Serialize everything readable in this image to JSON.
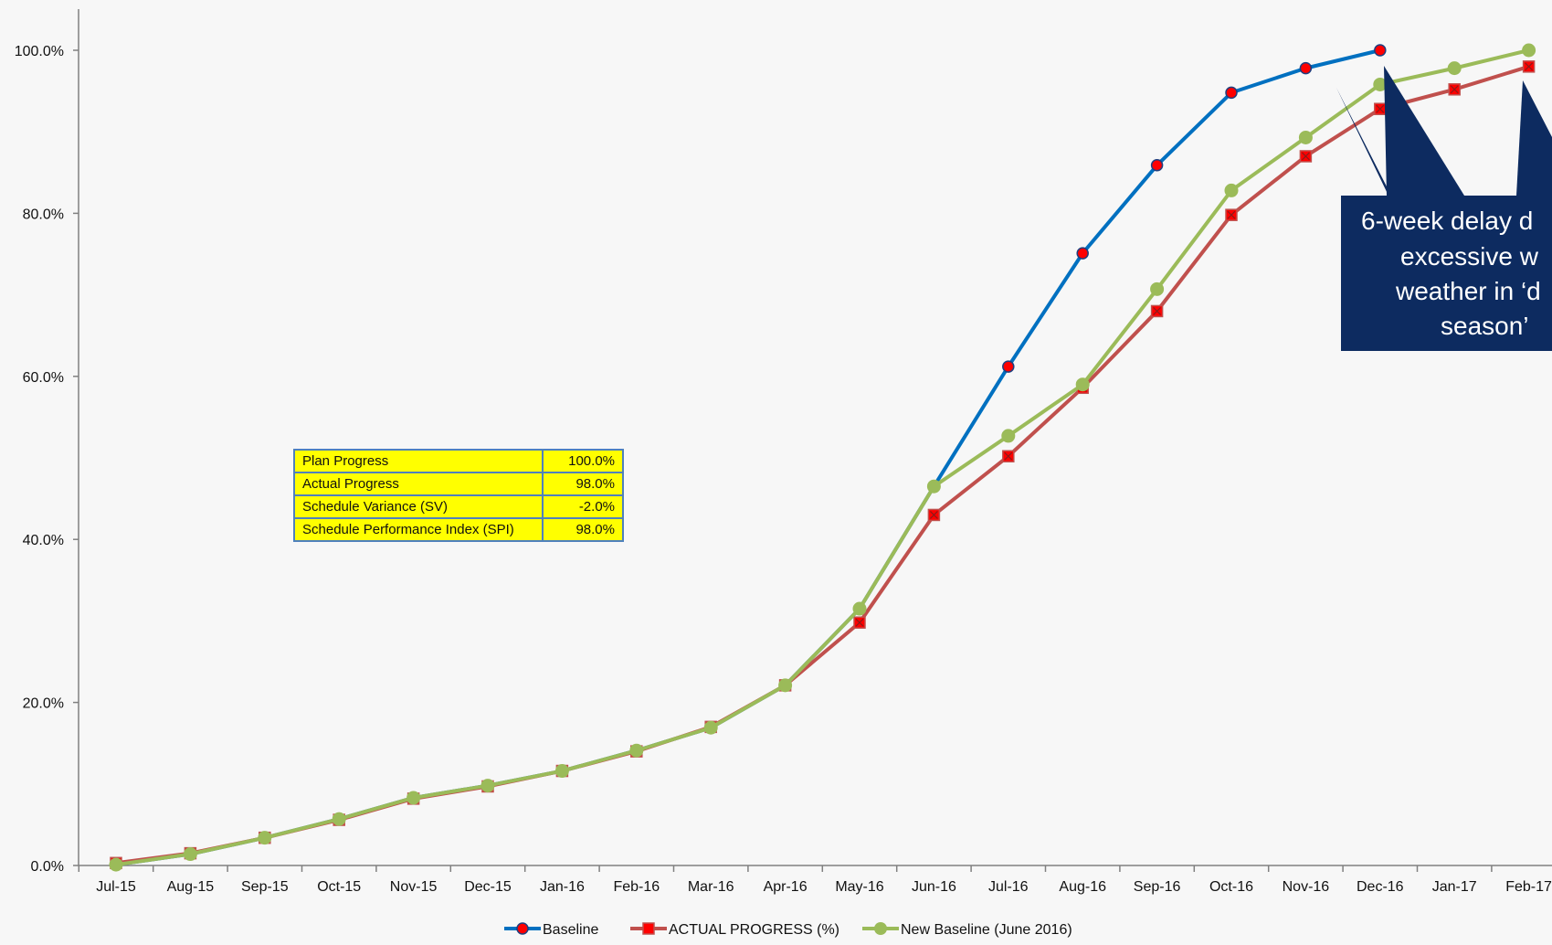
{
  "chart_data": {
    "type": "line",
    "categories": [
      "Jul-15",
      "Aug-15",
      "Sep-15",
      "Oct-15",
      "Nov-15",
      "Dec-15",
      "Jan-16",
      "Feb-16",
      "Mar-16",
      "Apr-16",
      "May-16",
      "Jun-16",
      "Jul-16",
      "Aug-16",
      "Sep-16",
      "Oct-16",
      "Nov-16",
      "Dec-16",
      "Jan-17",
      "Feb-17"
    ],
    "y_ticks": [
      "0.0%",
      "20.0%",
      "40.0%",
      "60.0%",
      "80.0%",
      "100.0%"
    ],
    "ylim": [
      0,
      100
    ],
    "grid": false,
    "legend_position": "bottom",
    "series": [
      {
        "name": "Baseline",
        "color": "#0070c0",
        "marker": "circle",
        "values": [
          0.1,
          1.4,
          3.4,
          5.7,
          8.3,
          9.8,
          11.6,
          14.1,
          16.9,
          22.1,
          31.5,
          46.5,
          61.2,
          75.1,
          85.9,
          94.8,
          97.8,
          100.0,
          null,
          null
        ]
      },
      {
        "name": "ACTUAL PROGRESS (%)",
        "color": "#c0504d",
        "marker": "square",
        "values": [
          0.3,
          1.5,
          3.4,
          5.6,
          8.2,
          9.7,
          11.6,
          14.0,
          17.0,
          22.1,
          29.8,
          43.0,
          50.2,
          58.6,
          68.0,
          79.8,
          87.0,
          92.8,
          95.2,
          98.0
        ]
      },
      {
        "name": "New Baseline (June 2016)",
        "color": "#9bbb59",
        "marker": "circle",
        "values": [
          0.1,
          1.4,
          3.4,
          5.7,
          8.3,
          9.8,
          11.6,
          14.1,
          16.9,
          22.1,
          31.5,
          46.5,
          52.7,
          59.0,
          70.7,
          82.8,
          89.3,
          95.8,
          97.8,
          100.0
        ]
      }
    ],
    "summary_table": [
      {
        "label": "Plan Progress",
        "value": "100.0%"
      },
      {
        "label": "Actual Progress",
        "value": "98.0%"
      },
      {
        "label": "Schedule Variance (SV)",
        "value": "-2.0%"
      },
      {
        "label": "Schedule Performance Index (SPI)",
        "value": "98.0%"
      }
    ],
    "annotation": {
      "lines": [
        "6-week delay d",
        "excessive w",
        "weather in ‘d",
        "season’"
      ],
      "background": "#0d2b60"
    }
  }
}
